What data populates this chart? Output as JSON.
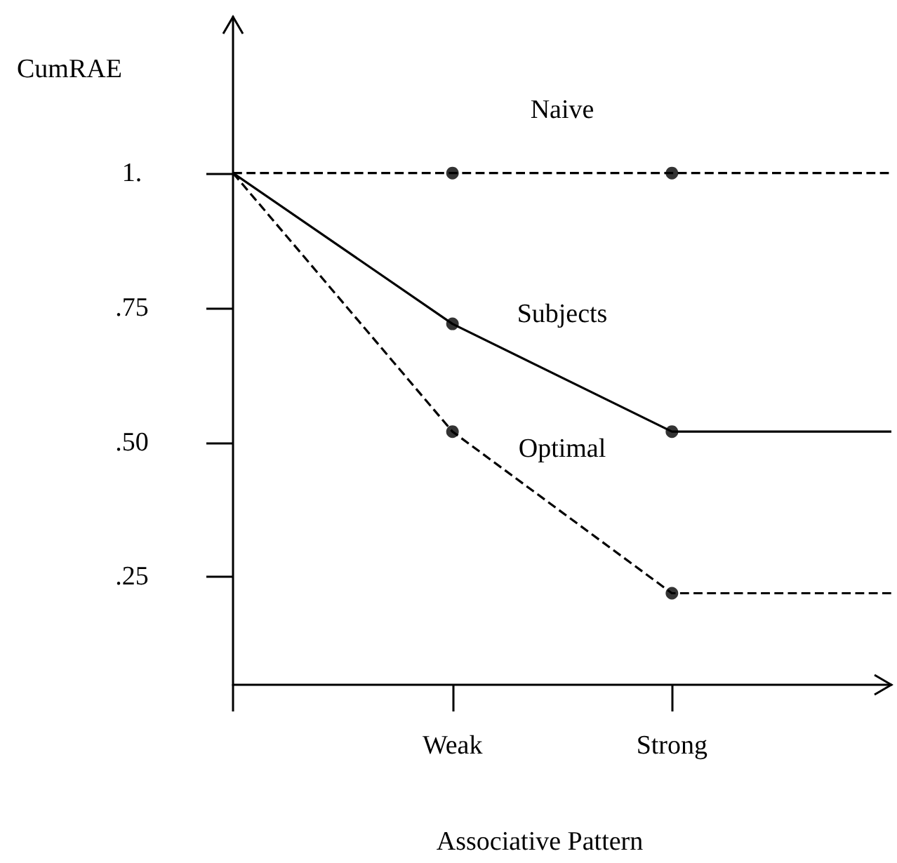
{
  "chart_data": {
    "type": "line",
    "xlabel": "Associative Pattern",
    "ylabel": "CumRAE",
    "categories": [
      null,
      "Weak",
      "Strong",
      null
    ],
    "ylim": [
      0.05,
      1.29
    ],
    "yticks": [
      {
        "value": 0.25,
        "label": ".25"
      },
      {
        "value": 0.5,
        "label": ".50"
      },
      {
        "value": 0.75,
        "label": ".75"
      },
      {
        "value": 1,
        "label": "1."
      }
    ],
    "grid": false,
    "legend": false,
    "series": [
      {
        "name": "Naive",
        "color": "#000000",
        "line_style": "dashed",
        "marker": "none",
        "values": [
          1,
          1,
          1,
          1
        ]
      },
      {
        "name": "Subjects",
        "color": "#000000",
        "line_style": "solid",
        "marker": "none",
        "values": [
          1,
          0.72,
          0.52,
          0.52
        ]
      },
      {
        "name": "Optimal",
        "color": "#000000",
        "line_style": "dashed",
        "marker": "none",
        "values": [
          1,
          0.52,
          0.22,
          0.22
        ]
      },
      {
        "type": "scatter",
        "color": "#000000",
        "marker": "circle",
        "x": [
          "Weak",
          "Strong",
          "Weak",
          "Strong",
          "Weak",
          "Strong"
        ],
        "values": [
          1,
          1,
          0.72,
          0.52,
          0.52,
          0.22
        ]
      }
    ]
  }
}
